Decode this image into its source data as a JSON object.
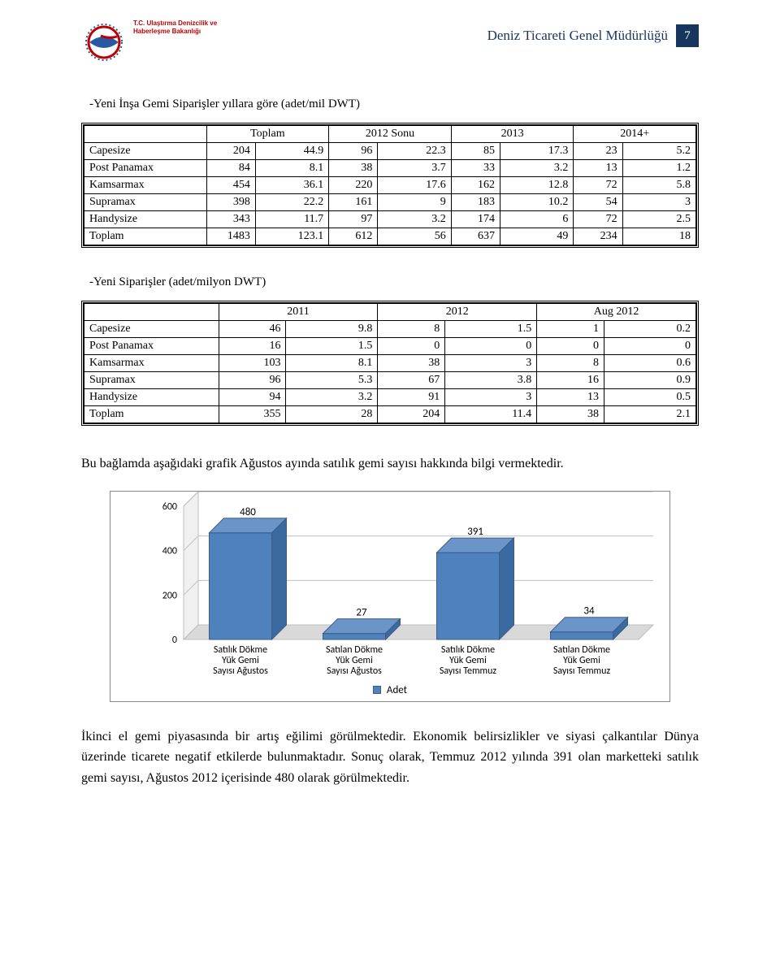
{
  "header": {
    "logo_text": "T.C.\nUlaştırma Denizcilik ve\nHaberleşme Bakanlığı",
    "title": "Deniz Ticareti Genel Müdürlüğü",
    "page_number": "7"
  },
  "section1": {
    "title": "-Yeni İnşa Gemi Siparişler yıllara göre (adet/mil DWT)",
    "header_labels": [
      "",
      "Toplam",
      "2012 Sonu",
      "2013",
      "2014+"
    ],
    "rows": [
      {
        "label": "Capesize",
        "c": [
          "204",
          "44.9",
          "96",
          "22.3",
          "85",
          "17.3",
          "23",
          "5.2"
        ]
      },
      {
        "label": "Post Panamax",
        "c": [
          "84",
          "8.1",
          "38",
          "3.7",
          "33",
          "3.2",
          "13",
          "1.2"
        ]
      },
      {
        "label": "Kamsarmax",
        "c": [
          "454",
          "36.1",
          "220",
          "17.6",
          "162",
          "12.8",
          "72",
          "5.8"
        ]
      },
      {
        "label": "Supramax",
        "c": [
          "398",
          "22.2",
          "161",
          "9",
          "183",
          "10.2",
          "54",
          "3"
        ]
      },
      {
        "label": "Handysize",
        "c": [
          "343",
          "11.7",
          "97",
          "3.2",
          "174",
          "6",
          "72",
          "2.5"
        ]
      },
      {
        "label": "Toplam",
        "c": [
          "1483",
          "123.1",
          "612",
          "56",
          "637",
          "49",
          "234",
          "18"
        ]
      }
    ]
  },
  "section2": {
    "title": "-Yeni Siparişler (adet/milyon DWT)",
    "header_labels": [
      "",
      "2011",
      "2012",
      "Aug 2012"
    ],
    "rows": [
      {
        "label": "Capesize",
        "c": [
          "46",
          "9.8",
          "8",
          "1.5",
          "1",
          "0.2"
        ]
      },
      {
        "label": "Post Panamax",
        "c": [
          "16",
          "1.5",
          "0",
          "0",
          "0",
          "0"
        ]
      },
      {
        "label": "Kamsarmax",
        "c": [
          "103",
          "8.1",
          "38",
          "3",
          "8",
          "0.6"
        ]
      },
      {
        "label": "Supramax",
        "c": [
          "96",
          "5.3",
          "67",
          "3.8",
          "16",
          "0.9"
        ]
      },
      {
        "label": "Handysize",
        "c": [
          "94",
          "3.2",
          "91",
          "3",
          "13",
          "0.5"
        ]
      },
      {
        "label": "Toplam",
        "c": [
          "355",
          "28",
          "204",
          "11.4",
          "38",
          "2.1"
        ]
      }
    ]
  },
  "paragraph1": "Bu bağlamda aşağıdaki grafik Ağustos ayında satılık gemi sayısı hakkında bilgi vermektedir.",
  "chart": {
    "type": "bar",
    "categories": [
      "Satılık Dökme\nYük Gemi\nSayısı Ağustos",
      "Satılan Dökme\nYük Gemi\nSayısı Ağustos",
      "Satılık Dökme\nYük Gemi\nSayısı Temmuz",
      "Satılan Dökme\nYük Gemi\nSayısı Temmuz"
    ],
    "values": [
      480,
      27,
      391,
      34
    ],
    "y_ticks": [
      0,
      200,
      400,
      600
    ],
    "ylim": [
      0,
      600
    ],
    "bar_color": "#4f81bd",
    "bar_top_color": "#6b94c8",
    "bar_side_color": "#3a6aa0",
    "legend_label": "Adet",
    "label_color": "#000000",
    "background_color": "#ffffff",
    "grid_color": "#bfbfbf"
  },
  "paragraph2": "İkinci el gemi piyasasında bir artış eğilimi görülmektedir. Ekonomik belirsizlikler ve siyasi çalkantılar Dünya üzerinde ticarete negatif etkilerde bulunmaktadır. Sonuç olarak, Temmuz 2012 yılında 391 olan marketteki satılık gemi sayısı, Ağustos 2012 içerisinde 480 olarak görülmektedir."
}
